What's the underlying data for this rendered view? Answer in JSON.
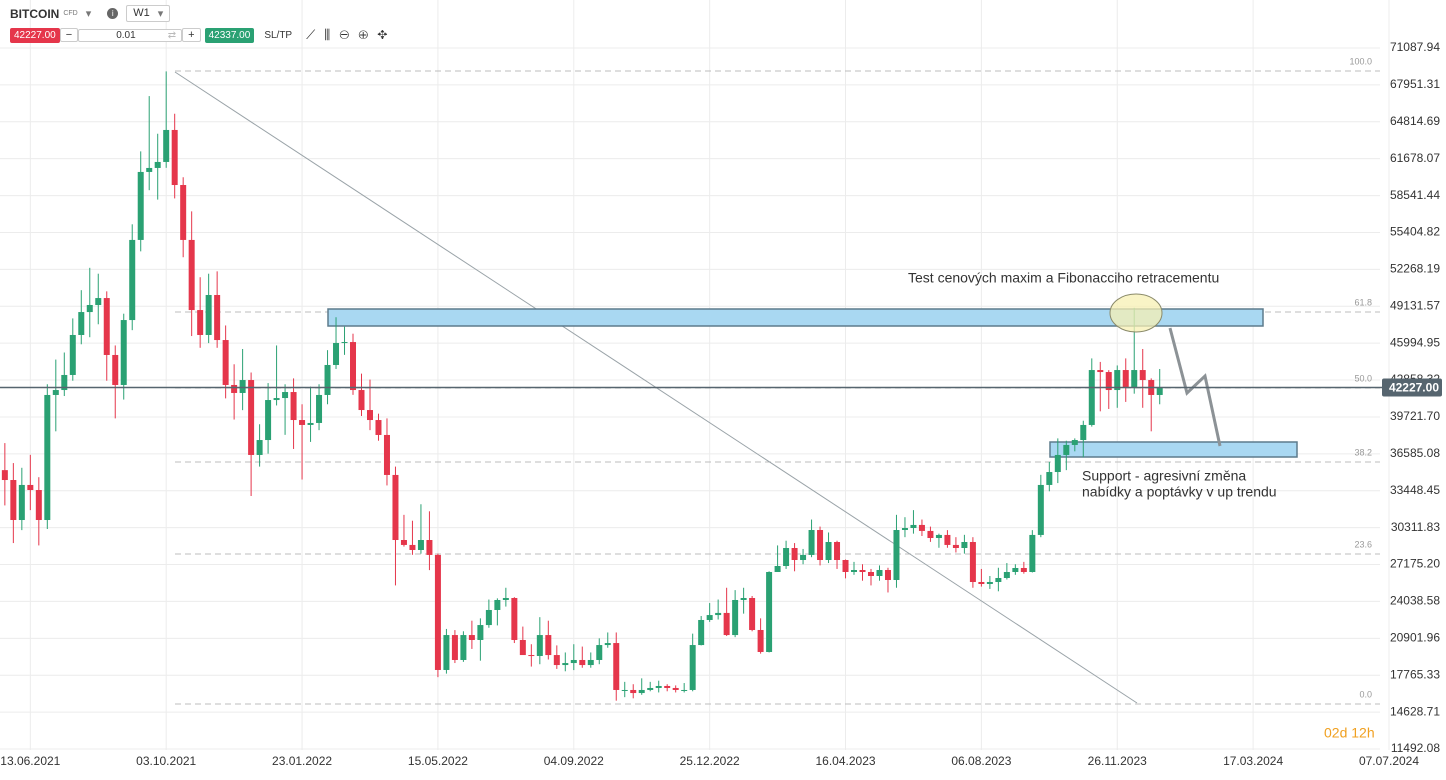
{
  "toolbar": {
    "symbol": "BITCOIN",
    "kind": "CFD",
    "interval": "W1",
    "sell": "42227.00",
    "volume": "0.01",
    "buy": "42337.00",
    "sltp": "SL/TP"
  },
  "chart_data": {
    "type": "candlestick",
    "x": [
      "23.05.2021",
      "30.05.2021",
      "06.06.2021",
      "13.06.2021",
      "20.06.2021",
      "27.06.2021",
      "04.07.2021",
      "11.07.2021",
      "18.07.2021",
      "25.07.2021",
      "01.08.2021",
      "08.08.2021",
      "15.08.2021",
      "22.08.2021",
      "29.08.2021",
      "05.09.2021",
      "12.09.2021",
      "19.09.2021",
      "26.09.2021",
      "03.10.2021",
      "10.10.2021",
      "17.10.2021",
      "24.10.2021",
      "31.10.2021",
      "07.11.2021",
      "14.11.2021",
      "21.11.2021",
      "28.11.2021",
      "05.12.2021",
      "12.12.2021",
      "19.12.2021",
      "26.12.2021",
      "02.01.2022",
      "09.01.2022",
      "16.01.2022",
      "23.01.2022",
      "30.01.2022",
      "06.02.2022",
      "13.02.2022",
      "20.02.2022",
      "27.02.2022",
      "06.03.2022",
      "13.03.2022",
      "20.03.2022",
      "27.03.2022",
      "03.04.2022",
      "10.04.2022",
      "17.04.2022",
      "24.04.2022",
      "01.05.2022",
      "08.05.2022",
      "15.05.2022",
      "22.05.2022",
      "29.05.2022",
      "05.06.2022",
      "12.06.2022",
      "19.06.2022",
      "26.06.2022",
      "03.07.2022",
      "10.07.2022",
      "17.07.2022",
      "24.07.2022",
      "31.07.2022",
      "07.08.2022",
      "14.08.2022",
      "21.08.2022",
      "28.08.2022",
      "04.09.2022",
      "11.09.2022",
      "18.09.2022",
      "25.09.2022",
      "02.10.2022",
      "09.10.2022",
      "16.10.2022",
      "23.10.2022",
      "30.10.2022",
      "06.11.2022",
      "13.11.2022",
      "20.11.2022",
      "27.11.2022",
      "04.12.2022",
      "11.12.2022",
      "18.12.2022",
      "25.12.2022",
      "01.01.2023",
      "08.01.2023",
      "15.01.2023",
      "22.01.2023",
      "29.01.2023",
      "05.02.2023",
      "12.02.2023",
      "19.02.2023",
      "26.02.2023",
      "05.03.2023",
      "12.03.2023",
      "19.03.2023",
      "26.03.2023",
      "02.04.2023",
      "09.04.2023",
      "16.04.2023",
      "23.04.2023",
      "30.04.2023",
      "07.05.2023",
      "14.05.2023",
      "21.05.2023",
      "28.05.2023",
      "04.06.2023",
      "11.06.2023",
      "18.06.2023",
      "25.06.2023",
      "02.07.2023",
      "09.07.2023",
      "16.07.2023",
      "23.07.2023",
      "30.07.2023",
      "06.08.2023",
      "13.08.2023",
      "20.08.2023",
      "27.08.2023",
      "03.09.2023",
      "10.09.2023",
      "17.09.2023",
      "24.09.2023",
      "01.10.2023",
      "08.10.2023",
      "15.10.2023",
      "22.10.2023",
      "29.10.2023",
      "05.11.2023",
      "12.11.2023",
      "19.11.2023",
      "26.11.2023",
      "03.12.2023",
      "10.12.2023",
      "17.12.2023",
      "24.12.2023",
      "31.12.2023"
    ],
    "open": [
      35200,
      34360,
      30960,
      33940,
      33510,
      30960,
      41590,
      42010,
      43290,
      46690,
      48640,
      49240,
      49830,
      44990,
      42440,
      47960,
      54770,
      60550,
      60890,
      61400,
      64120,
      59440,
      54770,
      48810,
      46690,
      50090,
      46260,
      42440,
      41760,
      42860,
      36490,
      37760,
      41160,
      41330,
      41840,
      39460,
      39040,
      39210,
      41590,
      44140,
      46010,
      46090,
      42010,
      40310,
      39460,
      38190,
      34790,
      29260,
      28840,
      28410,
      29260,
      27990,
      18210,
      21180,
      19060,
      21180,
      20760,
      22030,
      23310,
      24160,
      24330,
      20760,
      19480,
      19400,
      21180,
      19480,
      18630,
      18800,
      19060,
      18630,
      19060,
      20330,
      20500,
      16510,
      16510,
      16250,
      16510,
      16680,
      16850,
      16680,
      16510,
      16510,
      20330,
      22460,
      22880,
      23060,
      21180,
      24160,
      24330,
      21610,
      19740,
      26540,
      27050,
      28580,
      27560,
      27990,
      30110,
      27560,
      29090,
      27560,
      26540,
      26710,
      26540,
      26200,
      26710,
      25860,
      30110,
      30280,
      30540,
      30030,
      29430,
      29690,
      28840,
      28580,
      29090,
      25690,
      25520,
      25690,
      26030,
      26540,
      26880,
      26540,
      29690,
      33940,
      35040,
      36490,
      37340,
      37760,
      39040,
      43710,
      43540,
      42010,
      43710,
      42180,
      43710,
      42860,
      41590
    ],
    "high": [
      37500,
      35800,
      35400,
      36500,
      34600,
      42500,
      44600,
      45200,
      48100,
      50500,
      52400,
      51900,
      50400,
      45800,
      48500,
      56100,
      62300,
      67000,
      63800,
      69100,
      65500,
      60100,
      57200,
      51600,
      51900,
      52100,
      47500,
      44200,
      45500,
      43500,
      39100,
      42600,
      45800,
      42500,
      43000,
      40800,
      42300,
      42500,
      45400,
      48200,
      47400,
      46800,
      43400,
      42900,
      40000,
      39600,
      35500,
      31400,
      30900,
      32300,
      31700,
      28100,
      21700,
      21600,
      21500,
      22400,
      22600,
      24200,
      24300,
      25200,
      24400,
      21900,
      20400,
      22700,
      22400,
      20300,
      19700,
      20400,
      20200,
      19700,
      20900,
      21400,
      21400,
      17200,
      17000,
      17500,
      17200,
      17300,
      17000,
      16900,
      17100,
      21300,
      22800,
      23900,
      24200,
      25200,
      25000,
      25200,
      24500,
      22600,
      26600,
      28800,
      29200,
      29000,
      28500,
      31000,
      30400,
      29900,
      29200,
      27600,
      27400,
      27200,
      26800,
      27100,
      26900,
      31400,
      31200,
      31800,
      31000,
      30400,
      29800,
      30100,
      29500,
      29700,
      29500,
      26800,
      26200,
      26900,
      27300,
      27200,
      27400,
      30100,
      34800,
      35900,
      37900,
      37700,
      37900,
      39400,
      44700,
      44400,
      43700,
      44100,
      44700,
      49000,
      45500,
      43000,
      43800
    ],
    "low": [
      32200,
      29000,
      30100,
      31800,
      28800,
      30200,
      38500,
      41500,
      42800,
      45900,
      46500,
      47600,
      42800,
      39600,
      41200,
      47100,
      53800,
      59000,
      58200,
      60900,
      58300,
      53300,
      46600,
      45600,
      46000,
      45600,
      41300,
      39500,
      40300,
      33000,
      35500,
      36600,
      40700,
      38200,
      37000,
      34400,
      37600,
      38600,
      40800,
      43800,
      45000,
      41600,
      39800,
      38600,
      37700,
      33900,
      25400,
      28700,
      28000,
      28100,
      26700,
      17600,
      17900,
      18800,
      18900,
      20000,
      19000,
      21800,
      22000,
      23600,
      20500,
      19500,
      18500,
      18700,
      19100,
      18300,
      18100,
      18200,
      18400,
      18400,
      18700,
      20100,
      15600,
      15900,
      15800,
      16100,
      16400,
      16300,
      16400,
      16300,
      16300,
      16400,
      20300,
      22300,
      22500,
      21100,
      21000,
      23000,
      21500,
      19600,
      19700,
      26600,
      26800,
      26600,
      27200,
      27800,
      27100,
      27300,
      26800,
      26000,
      26300,
      25800,
      25400,
      25800,
      24800,
      25200,
      29500,
      29800,
      29600,
      29100,
      28600,
      28600,
      28200,
      28100,
      25200,
      25300,
      25100,
      24900,
      25900,
      26300,
      26400,
      26500,
      29500,
      33400,
      34100,
      35200,
      36800,
      36300,
      38900,
      40200,
      40400,
      40500,
      41000,
      41700,
      40500,
      38500,
      40800
    ],
    "close": [
      34360,
      30960,
      33940,
      33510,
      30960,
      41590,
      42010,
      43290,
      46690,
      48640,
      49240,
      49830,
      44990,
      42440,
      47960,
      54770,
      60550,
      60890,
      61400,
      64120,
      59440,
      54770,
      48810,
      46690,
      50090,
      46260,
      42440,
      41760,
      42860,
      36490,
      37760,
      41160,
      41330,
      41840,
      39460,
      39040,
      39210,
      41590,
      44140,
      46010,
      46090,
      42010,
      40310,
      39460,
      38190,
      34790,
      29260,
      28840,
      28410,
      29260,
      27990,
      18210,
      21180,
      19060,
      21180,
      20760,
      22030,
      23310,
      24160,
      24330,
      20760,
      19480,
      19400,
      21180,
      19480,
      18630,
      18800,
      19060,
      18630,
      19060,
      20330,
      20500,
      16510,
      16510,
      16250,
      16510,
      16680,
      16850,
      16680,
      16510,
      16510,
      20330,
      22460,
      22880,
      23060,
      21180,
      24160,
      24330,
      21610,
      19740,
      26540,
      27050,
      28580,
      27560,
      27990,
      30110,
      27560,
      29090,
      27560,
      26540,
      26710,
      26540,
      26200,
      26710,
      25860,
      30110,
      30280,
      30540,
      30030,
      29430,
      29690,
      28840,
      28580,
      29090,
      25690,
      25520,
      25690,
      26030,
      26540,
      26880,
      26540,
      29690,
      33940,
      35040,
      36490,
      37340,
      37760,
      39040,
      43710,
      43540,
      42010,
      43710,
      42180,
      43710,
      42860,
      41590,
      42227
    ],
    "up_color": "#2aa173",
    "down_color": "#e5364b",
    "xlim": [
      "19.05.2021",
      "23.08.2024"
    ],
    "xticks": [
      "13.06.2021",
      "03.10.2021",
      "23.01.2022",
      "15.05.2022",
      "04.09.2022",
      "25.12.2022",
      "16.04.2023",
      "06.08.2023",
      "26.11.2023",
      "17.03.2024",
      "07.07.2024"
    ],
    "ylim": [
      11407,
      75169
    ],
    "yticks": [
      71087.94,
      67951.31,
      64814.69,
      61678.07,
      58541.44,
      55404.82,
      52268.19,
      49131.57,
      45994.95,
      42858.32,
      {
        "value": 39721.7,
        "label": "39721.70"
      },
      36585.08,
      33448.45,
      30311.83,
      {
        "value": 27175.2,
        "label": "27175.20"
      },
      24038.58,
      20901.96,
      17765.33,
      14628.71,
      11492.08
    ],
    "grid": true,
    "levels": [
      {
        "value": 69133,
        "label": "100.0"
      },
      {
        "value": 48644,
        "label": "61.8"
      },
      {
        "value": 42182,
        "label": "50.0"
      },
      {
        "value": 35890,
        "label": "38.2"
      },
      {
        "value": 28070,
        "label": "23.6"
      },
      {
        "value": 15318,
        "label": "0.0"
      }
    ],
    "last_price": {
      "value": 42227,
      "label": "42227.00"
    },
    "countdown": "02d 12h",
    "annotations": [
      "Test cenových maxim a Fibonacciho retracementu",
      "Support - agresivní změna",
      "nabídky a poptávky v up trendu"
    ]
  }
}
